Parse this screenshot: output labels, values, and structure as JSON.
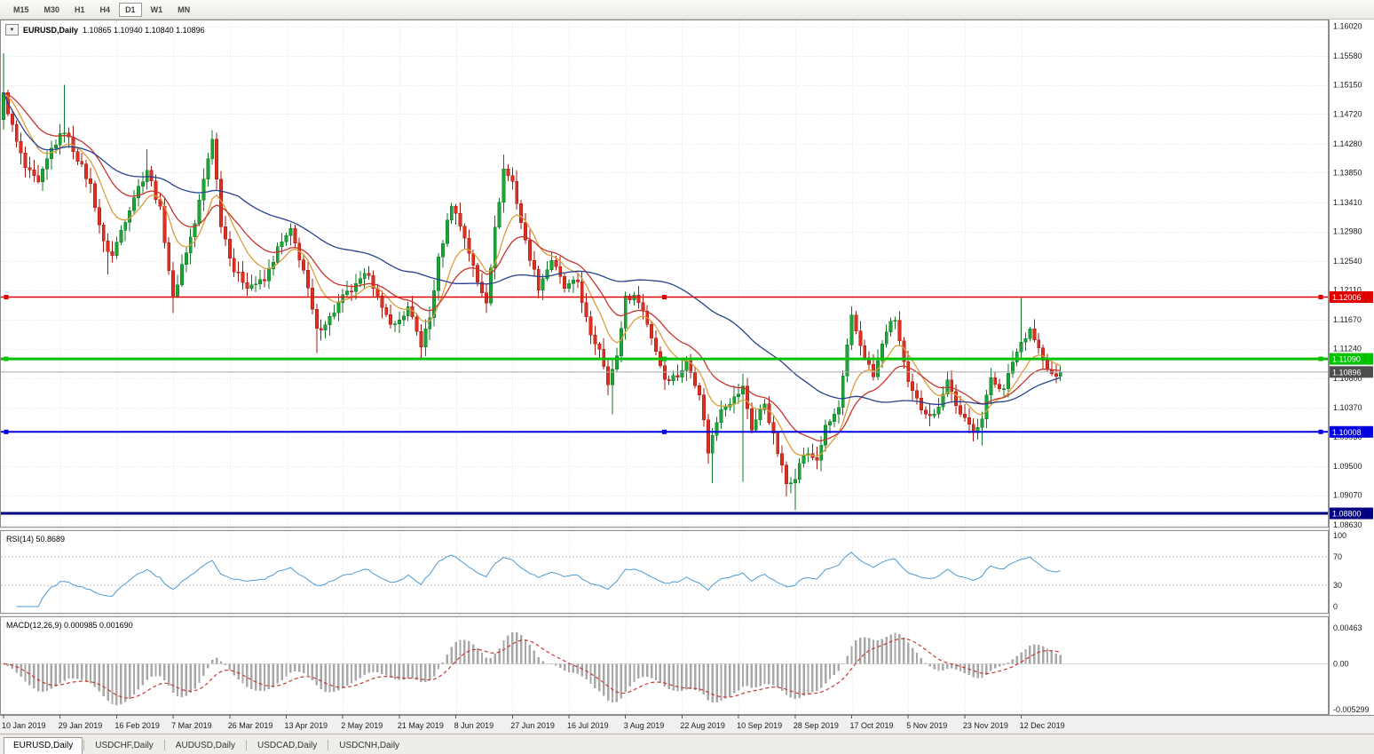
{
  "toolbar": {
    "timeframes": [
      {
        "label": "M15",
        "active": false
      },
      {
        "label": "M30",
        "active": false
      },
      {
        "label": "H1",
        "active": false
      },
      {
        "label": "H4",
        "active": false
      },
      {
        "label": "D1",
        "active": true
      },
      {
        "label": "W1",
        "active": false
      },
      {
        "label": "MN",
        "active": false
      }
    ]
  },
  "chart": {
    "legend": {
      "dropdown_icon": "▼",
      "symbol": "EURUSD,Daily",
      "ohlc": "1.10865 1.10940 1.10840 1.10896"
    },
    "y_ticks": [
      "1.16020",
      "1.15580",
      "1.15150",
      "1.14720",
      "1.14280",
      "1.13850",
      "1.13410",
      "1.12980",
      "1.12540",
      "1.12110",
      "1.11670",
      "1.11240",
      "1.10800",
      "1.10370",
      "1.09930",
      "1.09500",
      "1.09070",
      "1.08630"
    ],
    "hlines": [
      {
        "name": "resistance-line-red",
        "value": 1.12006,
        "label": "1.12006",
        "color": "#E00000",
        "width": 1.4,
        "handles": true
      },
      {
        "name": "support-line-green",
        "value": 1.1109,
        "label": "1.11090",
        "color": "#00C000",
        "width": 3,
        "handles": true
      },
      {
        "name": "support-line-blue",
        "value": 1.10008,
        "label": "1.10008",
        "color": "#0000E0",
        "width": 2,
        "handles": true
      },
      {
        "name": "support-line-navy",
        "value": 1.088,
        "label": "1.08800",
        "color": "#000080",
        "width": 3,
        "handles": false
      }
    ],
    "current_price": {
      "value": 1.10896,
      "label": "1.10896",
      "tag_bg": "#4D4D4D",
      "line_color": "#A8A8A8"
    }
  },
  "rsi": {
    "name": "RSI(14)",
    "value": "50.8689",
    "scale_labels": [
      "100",
      "70",
      "30",
      "0"
    ],
    "scale_values": [
      100,
      70,
      30,
      0
    ],
    "levels": [
      70,
      30
    ],
    "color": "#4E9BD4"
  },
  "macd": {
    "name": "MACD(12,26,9)",
    "values": "0.000985 0.001690",
    "scale_top": "0.00463",
    "scale_zero": "0.00",
    "scale_bottom": "-0.005299",
    "range": [
      -0.0053,
      0.0046
    ],
    "hist_color": "#A8A8A8",
    "signal_color": "#C23B32"
  },
  "x_axis": {
    "dates": [
      "10 Jan 2019",
      "29 Jan 2019",
      "16 Feb 2019",
      "7 Mar 2019",
      "26 Mar 2019",
      "13 Apr 2019",
      "2 May 2019",
      "21 May 2019",
      "8 Jun 2019",
      "27 Jun 2019",
      "16 Jul 2019",
      "3 Aug 2019",
      "22 Aug 2019",
      "10 Sep 2019",
      "28 Sep 2019",
      "17 Oct 2019",
      "5 Nov 2019",
      "23 Nov 2019",
      "12 Dec 2019"
    ],
    "indices": [
      0,
      13,
      26,
      39,
      52,
      65,
      78,
      91,
      104,
      117,
      130,
      143,
      156,
      169,
      182,
      195,
      208,
      221,
      234
    ]
  },
  "tabs": {
    "items": [
      {
        "label": "EURUSD,Daily",
        "active": true
      },
      {
        "label": "USDCHF,Daily",
        "active": false
      },
      {
        "label": "AUDUSD,Daily",
        "active": false
      },
      {
        "label": "USDCAD,Daily",
        "active": false
      },
      {
        "label": "USDCNH,Daily",
        "active": false
      }
    ]
  },
  "chart_data": {
    "type": "candlestick",
    "symbol": "EURUSD",
    "timeframe": "Daily",
    "bars": 244,
    "price_range": [
      1.0859,
      1.1612
    ],
    "bull_color": "#1CA437",
    "bear_color": "#DC3023",
    "bull_stroke": "#0E7A24",
    "bear_stroke": "#A8170F",
    "ma_lines": [
      {
        "period": 10,
        "type": "ema",
        "color": "#DA9E3C"
      },
      {
        "period": 21,
        "type": "ema",
        "color": "#C5352C"
      },
      {
        "period": 55,
        "type": "sma",
        "color": "#28418F"
      }
    ],
    "indicators": {
      "rsi_period": 14,
      "macd_fast": 12,
      "macd_slow": 26,
      "macd_signal": 9
    },
    "anchors": [
      [
        0,
        1.15
      ],
      [
        3,
        1.143
      ],
      [
        5,
        1.1392
      ],
      [
        8,
        1.1368
      ],
      [
        11,
        1.142
      ],
      [
        14,
        1.1448
      ],
      [
        16,
        1.142
      ],
      [
        20,
        1.1366
      ],
      [
        23,
        1.128
      ],
      [
        25,
        1.1262
      ],
      [
        27,
        1.13
      ],
      [
        30,
        1.135
      ],
      [
        33,
        1.139
      ],
      [
        36,
        1.133
      ],
      [
        39,
        1.1198
      ],
      [
        41,
        1.1248
      ],
      [
        44,
        1.131
      ],
      [
        48,
        1.1438
      ],
      [
        50,
        1.131
      ],
      [
        53,
        1.124
      ],
      [
        56,
        1.1218
      ],
      [
        60,
        1.1224
      ],
      [
        63,
        1.1272
      ],
      [
        66,
        1.1298
      ],
      [
        69,
        1.124
      ],
      [
        72,
        1.115
      ],
      [
        75,
        1.117
      ],
      [
        78,
        1.12
      ],
      [
        81,
        1.1216
      ],
      [
        84,
        1.1238
      ],
      [
        87,
        1.118
      ],
      [
        90,
        1.1158
      ],
      [
        93,
        1.1184
      ],
      [
        96,
        1.113
      ],
      [
        98,
        1.117
      ],
      [
        100,
        1.1256
      ],
      [
        103,
        1.134
      ],
      [
        106,
        1.129
      ],
      [
        109,
        1.1222
      ],
      [
        111,
        1.1196
      ],
      [
        113,
        1.13
      ],
      [
        115,
        1.139
      ],
      [
        117,
        1.1372
      ],
      [
        120,
        1.1282
      ],
      [
        123,
        1.1216
      ],
      [
        126,
        1.1256
      ],
      [
        129,
        1.1214
      ],
      [
        132,
        1.1224
      ],
      [
        135,
        1.114
      ],
      [
        137,
        1.1126
      ],
      [
        139,
        1.1076
      ],
      [
        141,
        1.111
      ],
      [
        143,
        1.1202
      ],
      [
        146,
        1.1198
      ],
      [
        149,
        1.1142
      ],
      [
        152,
        1.108
      ],
      [
        155,
        1.1084
      ],
      [
        157,
        1.1104
      ],
      [
        160,
        1.106
      ],
      [
        162,
        1.0972
      ],
      [
        165,
        1.1038
      ],
      [
        168,
        1.105
      ],
      [
        170,
        1.1066
      ],
      [
        172,
        1.1006
      ],
      [
        175,
        1.1044
      ],
      [
        177,
        1.0994
      ],
      [
        180,
        1.0924
      ],
      [
        182,
        1.0936
      ],
      [
        184,
        1.0968
      ],
      [
        187,
        1.096
      ],
      [
        189,
        1.1006
      ],
      [
        192,
        1.1036
      ],
      [
        195,
        1.117
      ],
      [
        197,
        1.113
      ],
      [
        200,
        1.1082
      ],
      [
        203,
        1.1152
      ],
      [
        205,
        1.1168
      ],
      [
        208,
        1.107
      ],
      [
        211,
        1.1036
      ],
      [
        214,
        1.1024
      ],
      [
        217,
        1.1078
      ],
      [
        220,
        1.1024
      ],
      [
        223,
        1.1004
      ],
      [
        225,
        1.102
      ],
      [
        227,
        1.1082
      ],
      [
        230,
        1.1062
      ],
      [
        232,
        1.1106
      ],
      [
        234,
        1.1134
      ],
      [
        236,
        1.1154
      ],
      [
        238,
        1.1124
      ],
      [
        240,
        1.109
      ],
      [
        242,
        1.1082
      ],
      [
        243,
        1.10896
      ]
    ],
    "extremes": {
      "0": {
        "high": 1.1562
      },
      "14": {
        "high": 1.1515
      },
      "24": {
        "low": 1.1234
      },
      "33": {
        "high": 1.142
      },
      "39": {
        "low": 1.1177
      },
      "48": {
        "high": 1.1448
      },
      "72": {
        "low": 1.1118
      },
      "96": {
        "low": 1.1107
      },
      "111": {
        "low": 1.1181
      },
      "115": {
        "high": 1.1412
      },
      "140": {
        "low": 1.1027
      },
      "163": {
        "low": 1.0925
      },
      "170": {
        "low": 1.0927,
        "high": 1.1087
      },
      "180": {
        "low": 1.0905
      },
      "182": {
        "low": 1.0885
      },
      "195": {
        "high": 1.1172
      },
      "225": {
        "low": 1.0981
      },
      "234": {
        "high": 1.1199
      }
    }
  }
}
